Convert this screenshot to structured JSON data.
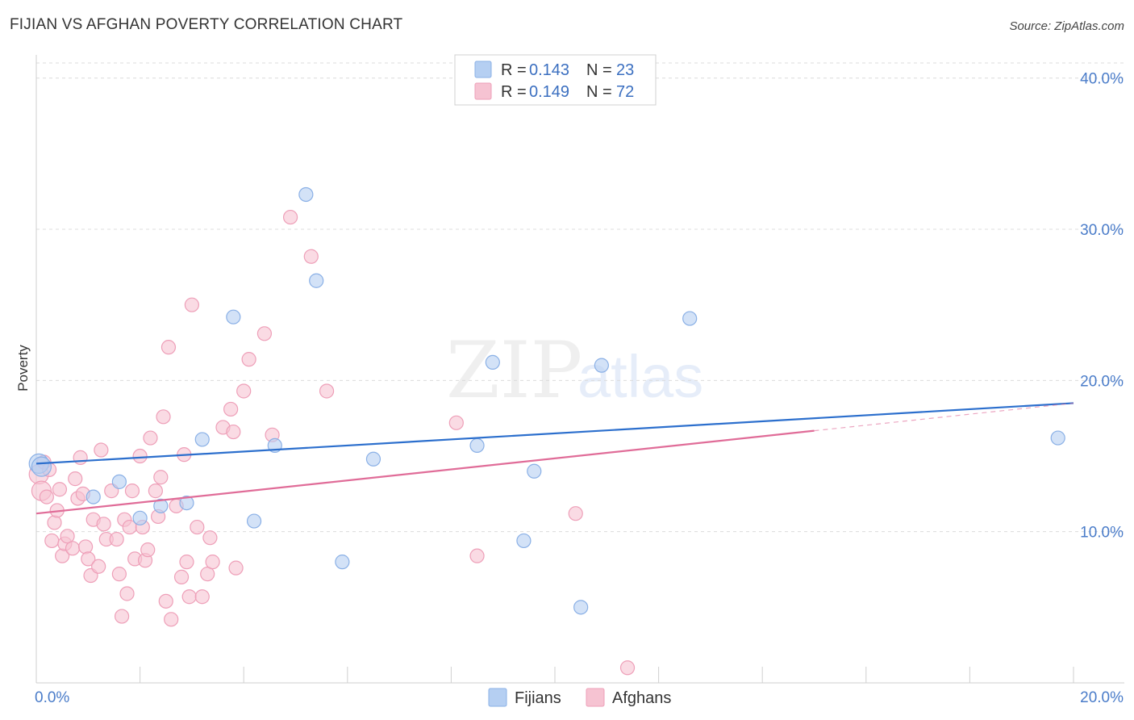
{
  "title": "FIJIAN VS AFGHAN POVERTY CORRELATION CHART",
  "source": "Source: ZipAtlas.com",
  "watermark": {
    "zip": "ZIP",
    "atlas": "atlas"
  },
  "legend": {
    "r_label": "R =",
    "n_label": "N =",
    "fijians": {
      "r": "0.143",
      "n": "23"
    },
    "afghans": {
      "r": "0.149",
      "n": "72"
    }
  },
  "colors": {
    "fijians_fill": "#b5cff2",
    "fijians_stroke": "#8ab0e6",
    "fijians_line": "#2c6fcd",
    "afghans_fill": "#f6c3d2",
    "afghans_stroke": "#ee9fb8",
    "afghans_line": "#e06c98",
    "grid": "#dcdcdc",
    "tick_label": "#4a7cc9"
  },
  "chart_data": {
    "type": "scatter",
    "title": "FIJIAN VS AFGHAN POVERTY CORRELATION CHART",
    "xlabel": "",
    "ylabel": "Poverty",
    "xlim": [
      0,
      20
    ],
    "ylim": [
      0,
      41
    ],
    "x_tick_labels": [
      "0.0%",
      "20.0%"
    ],
    "y_ticks": [
      10,
      20,
      30,
      40
    ],
    "y_tick_labels": [
      "10.0%",
      "20.0%",
      "30.0%",
      "40.0%"
    ],
    "grid": true,
    "legend_position": "bottom-center",
    "series": [
      {
        "name": "Fijians",
        "r": 0.143,
        "n": 23,
        "trend": {
          "x0": 0,
          "y0": 14.5,
          "x1": 20,
          "y1": 18.5,
          "dashed_from": null
        },
        "points": [
          [
            0.05,
            14.5
          ],
          [
            1.1,
            12.3
          ],
          [
            1.6,
            13.3
          ],
          [
            2.0,
            10.9
          ],
          [
            2.4,
            11.7
          ],
          [
            2.9,
            11.9
          ],
          [
            3.2,
            16.1
          ],
          [
            3.8,
            24.2
          ],
          [
            4.2,
            10.7
          ],
          [
            4.6,
            15.7
          ],
          [
            5.2,
            32.3
          ],
          [
            5.4,
            26.6
          ],
          [
            5.9,
            8.0
          ],
          [
            6.5,
            14.8
          ],
          [
            8.5,
            15.7
          ],
          [
            8.8,
            21.2
          ],
          [
            9.4,
            9.4
          ],
          [
            9.6,
            14.0
          ],
          [
            10.5,
            5.0
          ],
          [
            10.9,
            21.0
          ],
          [
            12.6,
            24.1
          ],
          [
            19.7,
            16.2
          ],
          [
            0.1,
            14.3
          ]
        ]
      },
      {
        "name": "Afghans",
        "r": 0.149,
        "n": 72,
        "trend": {
          "x0": 0,
          "y0": 11.2,
          "x1": 20,
          "y1": 18.5,
          "dashed_from": 15.0
        },
        "points": [
          [
            0.05,
            13.8
          ],
          [
            0.1,
            12.7
          ],
          [
            0.2,
            12.3
          ],
          [
            0.3,
            9.4
          ],
          [
            0.35,
            10.6
          ],
          [
            0.4,
            11.4
          ],
          [
            0.45,
            12.8
          ],
          [
            0.5,
            8.4
          ],
          [
            0.55,
            9.2
          ],
          [
            0.6,
            9.7
          ],
          [
            0.7,
            8.9
          ],
          [
            0.75,
            13.5
          ],
          [
            0.8,
            12.2
          ],
          [
            0.85,
            14.9
          ],
          [
            0.9,
            12.5
          ],
          [
            0.95,
            9.0
          ],
          [
            1.0,
            8.2
          ],
          [
            1.05,
            7.1
          ],
          [
            1.1,
            10.8
          ],
          [
            1.2,
            7.7
          ],
          [
            1.25,
            15.4
          ],
          [
            1.3,
            10.5
          ],
          [
            1.35,
            9.5
          ],
          [
            1.45,
            12.7
          ],
          [
            1.55,
            9.5
          ],
          [
            1.6,
            7.2
          ],
          [
            1.65,
            4.4
          ],
          [
            1.7,
            10.8
          ],
          [
            1.75,
            5.9
          ],
          [
            1.8,
            10.3
          ],
          [
            1.85,
            12.7
          ],
          [
            1.9,
            8.2
          ],
          [
            2.0,
            15.0
          ],
          [
            2.05,
            10.3
          ],
          [
            2.1,
            8.1
          ],
          [
            2.15,
            8.8
          ],
          [
            2.2,
            16.2
          ],
          [
            2.3,
            12.7
          ],
          [
            2.35,
            11.0
          ],
          [
            2.4,
            13.6
          ],
          [
            2.45,
            17.6
          ],
          [
            2.5,
            5.4
          ],
          [
            2.55,
            22.2
          ],
          [
            2.6,
            4.2
          ],
          [
            2.7,
            11.7
          ],
          [
            2.8,
            7.0
          ],
          [
            2.85,
            15.1
          ],
          [
            2.9,
            8.0
          ],
          [
            2.95,
            5.7
          ],
          [
            3.0,
            25.0
          ],
          [
            3.1,
            10.3
          ],
          [
            3.2,
            5.7
          ],
          [
            3.3,
            7.2
          ],
          [
            3.35,
            9.6
          ],
          [
            3.4,
            8.0
          ],
          [
            3.6,
            16.9
          ],
          [
            3.75,
            18.1
          ],
          [
            3.8,
            16.6
          ],
          [
            3.85,
            7.6
          ],
          [
            4.0,
            19.3
          ],
          [
            4.1,
            21.4
          ],
          [
            4.4,
            23.1
          ],
          [
            4.55,
            16.4
          ],
          [
            4.9,
            30.8
          ],
          [
            5.3,
            28.2
          ],
          [
            5.6,
            19.3
          ],
          [
            8.1,
            17.2
          ],
          [
            8.5,
            8.4
          ],
          [
            10.4,
            11.2
          ],
          [
            11.4,
            1.0
          ],
          [
            0.15,
            14.6
          ],
          [
            0.25,
            14.1
          ]
        ]
      }
    ]
  },
  "bottom_legend": {
    "fijians": "Fijians",
    "afghans": "Afghans"
  }
}
